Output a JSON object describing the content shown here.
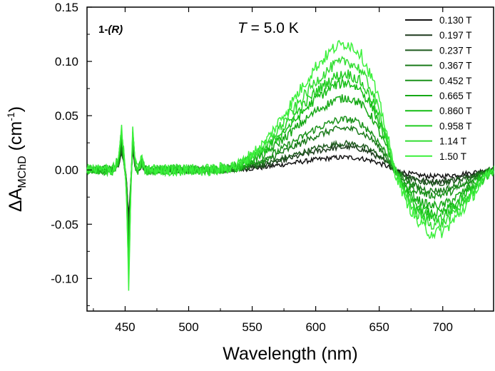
{
  "chart_data": {
    "type": "line",
    "title": "",
    "sample_label": {
      "prefix": "1-",
      "suffix": "(R)"
    },
    "temperature_label": {
      "var": "T",
      "text": " = 5.0 K"
    },
    "xlabel": "Wavelength (nm)",
    "ylabel": {
      "prefix": "ΔA",
      "subscript": "MChD",
      "unit": " (cm",
      "exponent": "-1",
      "close": ")"
    },
    "xlim": [
      420,
      740
    ],
    "ylim": [
      -0.13,
      0.15
    ],
    "x_ticks": [
      450,
      500,
      550,
      600,
      650,
      700
    ],
    "y_ticks": [
      -0.1,
      -0.05,
      0.0,
      0.05,
      0.1,
      0.15
    ],
    "x_tick_labels": [
      "450",
      "500",
      "550",
      "600",
      "650",
      "700"
    ],
    "y_tick_labels": [
      "-0.10",
      "-0.05",
      "0.00",
      "0.05",
      "0.10",
      "0.15"
    ],
    "legend_position": "top-right",
    "series": [
      {
        "name": "0.130 T",
        "color": "#141414",
        "scale": 0.1
      },
      {
        "name": "0.197 T",
        "color": "#1e3a1e",
        "scale": 0.18
      },
      {
        "name": "0.237 T",
        "color": "#1e5a1e",
        "scale": 0.21
      },
      {
        "name": "0.367 T",
        "color": "#1a7a1a",
        "scale": 0.33
      },
      {
        "name": "0.452 T",
        "color": "#1a921a",
        "scale": 0.4
      },
      {
        "name": "0.665 T",
        "color": "#16a816",
        "scale": 0.57
      },
      {
        "name": "0.860 T",
        "color": "#15bd15",
        "scale": 0.69
      },
      {
        "name": "0.958 T",
        "color": "#22cc22",
        "scale": 0.76
      },
      {
        "name": "1.14 T",
        "color": "#33dd33",
        "scale": 0.86
      },
      {
        "name": "1.50 T",
        "color": "#3cf03c",
        "scale": 1.0
      }
    ],
    "profile": {
      "x": [
        420,
        440,
        445,
        447,
        449,
        451,
        452,
        453,
        454,
        456,
        458,
        460,
        463,
        466,
        470,
        480,
        500,
        520,
        540,
        560,
        580,
        600,
        615,
        625,
        635,
        645,
        655,
        662,
        670,
        680,
        690,
        700,
        710,
        720,
        730,
        740
      ],
      "y": [
        0.0,
        0.0,
        0.012,
        0.04,
        0.015,
        -0.02,
        -0.07,
        -0.115,
        -0.04,
        0.04,
        0.005,
        0.0,
        0.01,
        0.0,
        0.0,
        0.0,
        0.0,
        0.0,
        0.005,
        0.025,
        0.06,
        0.095,
        0.113,
        0.117,
        0.108,
        0.083,
        0.04,
        0.0,
        -0.025,
        -0.048,
        -0.058,
        -0.057,
        -0.045,
        -0.03,
        -0.012,
        0.0
      ]
    }
  }
}
